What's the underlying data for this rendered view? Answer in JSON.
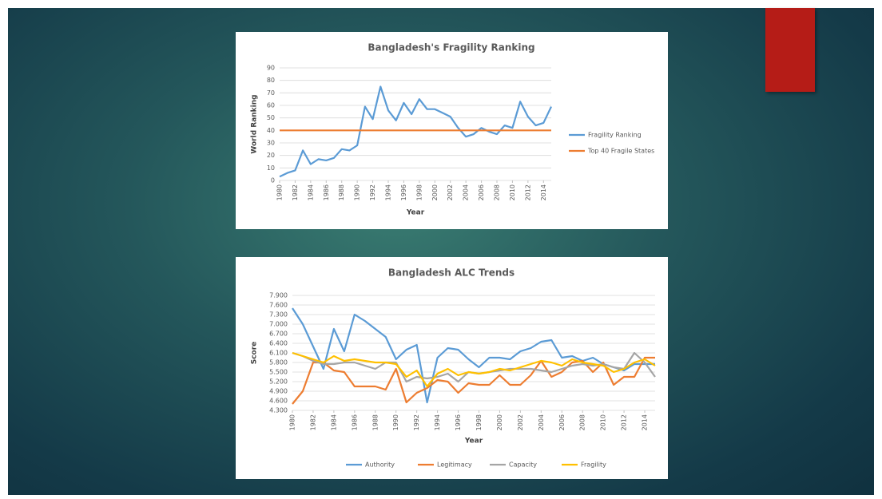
{
  "chart_data": [
    {
      "type": "line",
      "title": "Bangladesh's Fragility Ranking",
      "xlabel": "Year",
      "ylabel": "World Ranking",
      "x": [
        1980,
        1981,
        1982,
        1983,
        1984,
        1985,
        1986,
        1987,
        1988,
        1989,
        1990,
        1991,
        1992,
        1993,
        1994,
        1995,
        1996,
        1997,
        1998,
        1999,
        2000,
        2001,
        2002,
        2003,
        2004,
        2005,
        2006,
        2007,
        2008,
        2009,
        2010,
        2011,
        2012,
        2013,
        2014,
        2015
      ],
      "xlim": [
        1980,
        2015
      ],
      "xticks": [
        1980,
        1982,
        1984,
        1986,
        1988,
        1990,
        1992,
        1994,
        1996,
        1998,
        2000,
        2002,
        2004,
        2006,
        2008,
        2010,
        2012,
        2014
      ],
      "ylim": [
        0,
        90
      ],
      "yticks": [
        0,
        10,
        20,
        30,
        40,
        50,
        60,
        70,
        80,
        90
      ],
      "grid": true,
      "legend": "right",
      "series": [
        {
          "name": "Fragility Ranking",
          "color": "#5b9bd5",
          "values": [
            3,
            6,
            8,
            24,
            13,
            17,
            16,
            18,
            25,
            24,
            28,
            59,
            49,
            75,
            56,
            48,
            62,
            53,
            65,
            57,
            57,
            54,
            51,
            42,
            35,
            37,
            42,
            39,
            37,
            44,
            42,
            63,
            51,
            44,
            46,
            59
          ]
        },
        {
          "name": "Top 40 Fragile States",
          "color": "#ed7d31",
          "values": [
            40,
            40,
            40,
            40,
            40,
            40,
            40,
            40,
            40,
            40,
            40,
            40,
            40,
            40,
            40,
            40,
            40,
            40,
            40,
            40,
            40,
            40,
            40,
            40,
            40,
            40,
            40,
            40,
            40,
            40,
            40,
            40,
            40,
            40,
            40,
            40
          ]
        }
      ]
    },
    {
      "type": "line",
      "title": "Bangladesh ALC Trends",
      "xlabel": "Year",
      "ylabel": "Score",
      "x": [
        1980,
        1981,
        1982,
        1983,
        1984,
        1985,
        1986,
        1987,
        1988,
        1989,
        1990,
        1991,
        1992,
        1993,
        1994,
        1995,
        1996,
        1997,
        1998,
        1999,
        2000,
        2001,
        2002,
        2003,
        2004,
        2005,
        2006,
        2007,
        2008,
        2009,
        2010,
        2011,
        2012,
        2013,
        2014,
        2015
      ],
      "xlim": [
        1980,
        2015
      ],
      "xticks": [
        1980,
        1982,
        1984,
        1986,
        1988,
        1990,
        1992,
        1994,
        1996,
        1998,
        2000,
        2002,
        2004,
        2006,
        2008,
        2010,
        2012,
        2014
      ],
      "ylim": [
        4.3,
        7.9
      ],
      "yticks": [
        {
          "value": 4.3,
          "label": "4.300"
        },
        {
          "value": 4.6,
          "label": "4.600"
        },
        {
          "value": 4.9,
          "label": "4.900"
        },
        {
          "value": 5.2,
          "label": "5.200"
        },
        {
          "value": 5.5,
          "label": "5.500"
        },
        {
          "value": 5.8,
          "label": "5.800"
        },
        {
          "value": 6.1,
          "label": "6.100"
        },
        {
          "value": 6.4,
          "label": "6.400"
        },
        {
          "value": 6.7,
          "label": "6.700"
        },
        {
          "value": 7.0,
          "label": "7.000"
        },
        {
          "value": 7.3,
          "label": "7.300"
        },
        {
          "value": 7.6,
          "label": "7.600"
        },
        {
          "value": 7.9,
          "label": "7.900"
        }
      ],
      "grid": true,
      "legend": "bottom",
      "series": [
        {
          "name": "Authority",
          "color": "#5b9bd5",
          "values": [
            7.5,
            7.0,
            6.3,
            5.6,
            6.85,
            6.15,
            7.3,
            7.1,
            6.85,
            6.6,
            5.9,
            6.2,
            6.35,
            4.55,
            5.95,
            6.25,
            6.2,
            5.9,
            5.65,
            5.95,
            5.95,
            5.9,
            6.15,
            6.25,
            6.45,
            6.5,
            5.95,
            6.0,
            5.85,
            5.95,
            5.75,
            5.65,
            5.55,
            5.75,
            5.75,
            5.75
          ]
        },
        {
          "name": "Legitimacy",
          "color": "#ed7d31",
          "values": [
            4.5,
            4.9,
            5.8,
            5.8,
            5.55,
            5.5,
            5.05,
            5.05,
            5.05,
            4.95,
            5.6,
            4.55,
            4.85,
            5.0,
            5.25,
            5.2,
            4.85,
            5.15,
            5.1,
            5.1,
            5.4,
            5.1,
            5.1,
            5.4,
            5.85,
            5.35,
            5.5,
            5.8,
            5.85,
            5.5,
            5.8,
            5.1,
            5.35,
            5.35,
            5.95,
            5.95
          ]
        },
        {
          "name": "Capacity",
          "color": "#a5a5a5",
          "values": [
            6.1,
            6.0,
            5.85,
            5.75,
            5.75,
            5.8,
            5.8,
            5.7,
            5.6,
            5.8,
            5.8,
            5.2,
            5.35,
            5.3,
            5.35,
            5.45,
            5.2,
            5.5,
            5.45,
            5.5,
            5.55,
            5.6,
            5.6,
            5.6,
            5.55,
            5.5,
            5.6,
            5.7,
            5.75,
            5.7,
            5.75,
            5.65,
            5.6,
            6.1,
            5.8,
            5.35
          ]
        },
        {
          "name": "Fragility",
          "color": "#ffc000",
          "values": [
            6.1,
            6.0,
            5.9,
            5.8,
            6.0,
            5.85,
            5.9,
            5.85,
            5.8,
            5.8,
            5.75,
            5.35,
            5.55,
            5.05,
            5.45,
            5.6,
            5.4,
            5.5,
            5.45,
            5.5,
            5.6,
            5.55,
            5.65,
            5.75,
            5.85,
            5.8,
            5.7,
            5.9,
            5.8,
            5.75,
            5.7,
            5.5,
            5.6,
            5.8,
            5.9,
            5.7
          ]
        }
      ]
    }
  ]
}
